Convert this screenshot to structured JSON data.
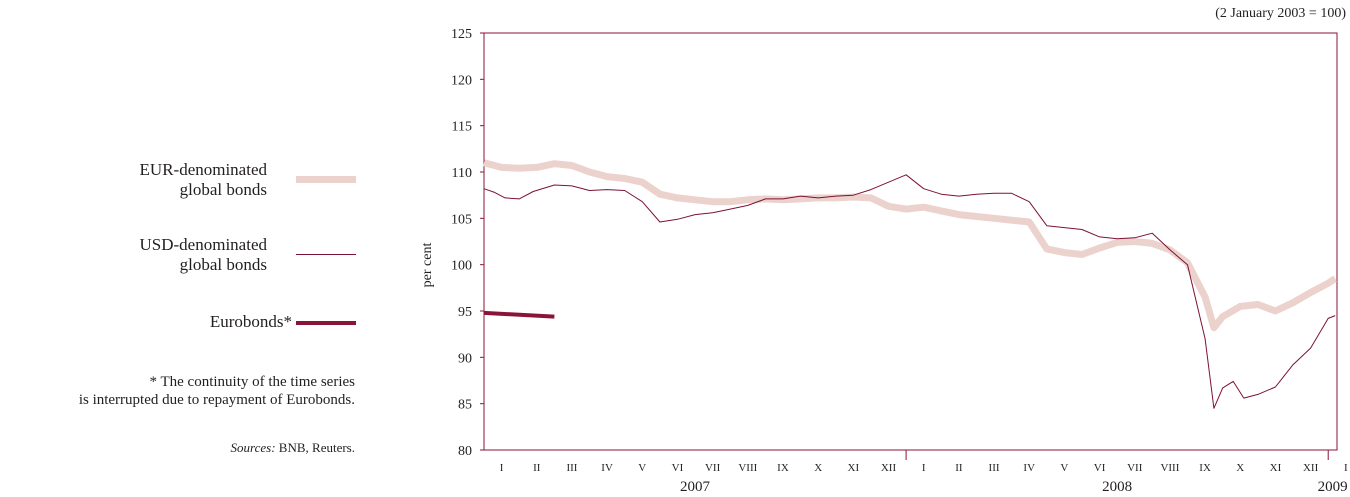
{
  "legend": {
    "eur_line1": "EUR-denominated",
    "eur_line2": "global bonds",
    "usd_line1": "USD-denominated",
    "usd_line2": "global bonds",
    "euro": "Eurobonds*"
  },
  "note_line1": "* The continuity of the time series",
  "note_line2": "is interrupted due to repayment of Eurobonds.",
  "sources_label": "Sources:",
  "sources_text": " BNB, Reuters.",
  "colors": {
    "eur": "#ecd2cc",
    "usd": "#7c1236",
    "euro": "#8a1538",
    "axis": "#8a1538",
    "text": "#231f20"
  },
  "chart_data": {
    "type": "line",
    "title": "",
    "subtitle": "(2 January 2003 = 100)",
    "ylabel": "per cent",
    "xlabel": "",
    "ylim": [
      80,
      125
    ],
    "yticks": [
      "80",
      "85",
      "90",
      "95",
      "100",
      "105",
      "110",
      "115",
      "120",
      "125"
    ],
    "month_labels": [
      "I",
      "II",
      "III",
      "IV",
      "V",
      "VI",
      "VII",
      "VIII",
      "IX",
      "X",
      "XI",
      "XII",
      "I",
      "II",
      "III",
      "IV",
      "V",
      "VI",
      "VII",
      "VIII",
      "IX",
      "X",
      "XI",
      "XII",
      "I"
    ],
    "years": [
      "2007",
      "2008",
      "2009"
    ],
    "grid": false,
    "legend_position": "left",
    "series": [
      {
        "name": "EUR-denominated global bonds",
        "color": "#ecd2cc",
        "points": [
          [
            0,
            111
          ],
          [
            0.5,
            110.5
          ],
          [
            1,
            110.4
          ],
          [
            1.5,
            110.5
          ],
          [
            2,
            110.9
          ],
          [
            2.5,
            110.7
          ],
          [
            3,
            110
          ],
          [
            3.5,
            109.5
          ],
          [
            4,
            109.3
          ],
          [
            4.5,
            108.9
          ],
          [
            5,
            107.6
          ],
          [
            5.5,
            107.2
          ],
          [
            6,
            107
          ],
          [
            6.5,
            106.8
          ],
          [
            7,
            106.8
          ],
          [
            7.5,
            107
          ],
          [
            8,
            107.1
          ],
          [
            8.5,
            107
          ],
          [
            9,
            107.1
          ],
          [
            9.5,
            107.2
          ],
          [
            10,
            107.2
          ],
          [
            10.5,
            107.3
          ],
          [
            11,
            107.2
          ],
          [
            11.5,
            106.3
          ],
          [
            12,
            106
          ],
          [
            12.5,
            106.2
          ],
          [
            13,
            105.8
          ],
          [
            13.5,
            105.4
          ],
          [
            14,
            105.2
          ],
          [
            14.5,
            105
          ],
          [
            15,
            104.8
          ],
          [
            15.5,
            104.6
          ],
          [
            16,
            101.7
          ],
          [
            16.5,
            101.3
          ],
          [
            17,
            101.1
          ],
          [
            17.5,
            101.8
          ],
          [
            18,
            102.4
          ],
          [
            18.5,
            102.5
          ],
          [
            19,
            102.3
          ],
          [
            19.5,
            101.6
          ],
          [
            20,
            100.2
          ],
          [
            20.5,
            96.5
          ],
          [
            20.75,
            93.2
          ],
          [
            21,
            94.4
          ],
          [
            21.5,
            95.5
          ],
          [
            22,
            95.7
          ],
          [
            22.5,
            95
          ],
          [
            23,
            95.9
          ],
          [
            23.5,
            97
          ],
          [
            24,
            98
          ],
          [
            24.2,
            98.5
          ]
        ]
      },
      {
        "name": "USD-denominated global bonds",
        "color": "#7c1236",
        "points": [
          [
            0,
            108.2
          ],
          [
            0.3,
            107.8
          ],
          [
            0.6,
            107.2
          ],
          [
            1,
            107.1
          ],
          [
            1.4,
            107.9
          ],
          [
            2,
            108.6
          ],
          [
            2.5,
            108.5
          ],
          [
            3,
            108
          ],
          [
            3.5,
            108.1
          ],
          [
            4,
            108
          ],
          [
            4.5,
            106.8
          ],
          [
            5,
            104.6
          ],
          [
            5.5,
            104.9
          ],
          [
            6,
            105.4
          ],
          [
            6.5,
            105.6
          ],
          [
            7,
            106
          ],
          [
            7.5,
            106.4
          ],
          [
            8,
            107.1
          ],
          [
            8.5,
            107.1
          ],
          [
            9,
            107.4
          ],
          [
            9.5,
            107.2
          ],
          [
            10,
            107.4
          ],
          [
            10.5,
            107.5
          ],
          [
            11,
            108.1
          ],
          [
            11.5,
            108.9
          ],
          [
            12,
            109.7
          ],
          [
            12.5,
            108.2
          ],
          [
            13,
            107.6
          ],
          [
            13.5,
            107.4
          ],
          [
            14,
            107.6
          ],
          [
            14.5,
            107.7
          ],
          [
            15,
            107.7
          ],
          [
            15.5,
            106.8
          ],
          [
            16,
            104.2
          ],
          [
            16.5,
            104
          ],
          [
            17,
            103.8
          ],
          [
            17.5,
            103
          ],
          [
            18,
            102.8
          ],
          [
            18.5,
            102.9
          ],
          [
            19,
            103.4
          ],
          [
            19.5,
            101.6
          ],
          [
            20,
            100
          ],
          [
            20.5,
            92
          ],
          [
            20.75,
            84.5
          ],
          [
            21,
            86.7
          ],
          [
            21.3,
            87.4
          ],
          [
            21.6,
            85.6
          ],
          [
            22,
            86
          ],
          [
            22.5,
            86.8
          ],
          [
            23,
            89.2
          ],
          [
            23.5,
            91
          ],
          [
            24,
            94.2
          ],
          [
            24.2,
            94.5
          ]
        ]
      },
      {
        "name": "Eurobonds*",
        "color": "#8a1538",
        "points": [
          [
            0,
            94.8
          ],
          [
            2,
            94.4
          ]
        ]
      }
    ]
  }
}
